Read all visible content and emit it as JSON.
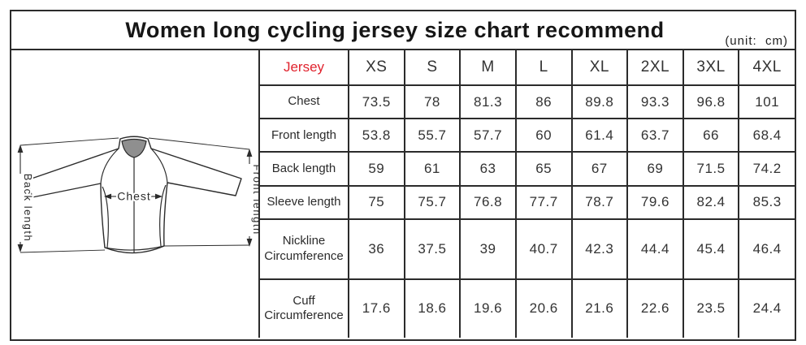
{
  "title": "Women long cycling jersey size chart recommend",
  "unit_note": "(unit:  cm)",
  "colors": {
    "accent_red": "#e0232e",
    "line": "#2b2b2b",
    "collar_fill": "#8f8f8f",
    "background": "#ffffff"
  },
  "diagram": {
    "back_length_label": "Back length",
    "front_length_label": "Front length",
    "chest_label": "Chest"
  },
  "chart_data": {
    "type": "table",
    "title": "Women long cycling jersey size chart recommend",
    "unit": "cm",
    "columns": [
      "Jersey",
      "XS",
      "S",
      "M",
      "L",
      "XL",
      "2XL",
      "3XL",
      "4XL"
    ],
    "rows": [
      [
        "Chest",
        73.5,
        78,
        81.3,
        86,
        89.8,
        93.3,
        96.8,
        101
      ],
      [
        "Front length",
        53.8,
        55.7,
        57.7,
        60,
        61.4,
        63.7,
        66,
        68.4
      ],
      [
        "Back length",
        59,
        61,
        63,
        65,
        67,
        69,
        71.5,
        74.2
      ],
      [
        "Sleeve length",
        75,
        75.7,
        76.8,
        77.7,
        78.7,
        79.6,
        82.4,
        85.3
      ],
      [
        "Nickline Circumference",
        36,
        37.5,
        39,
        40.7,
        42.3,
        44.4,
        45.4,
        46.4
      ],
      [
        "Cuff Circumference",
        17.6,
        18.6,
        19.6,
        20.6,
        21.6,
        22.6,
        23.5,
        24.4
      ]
    ]
  }
}
